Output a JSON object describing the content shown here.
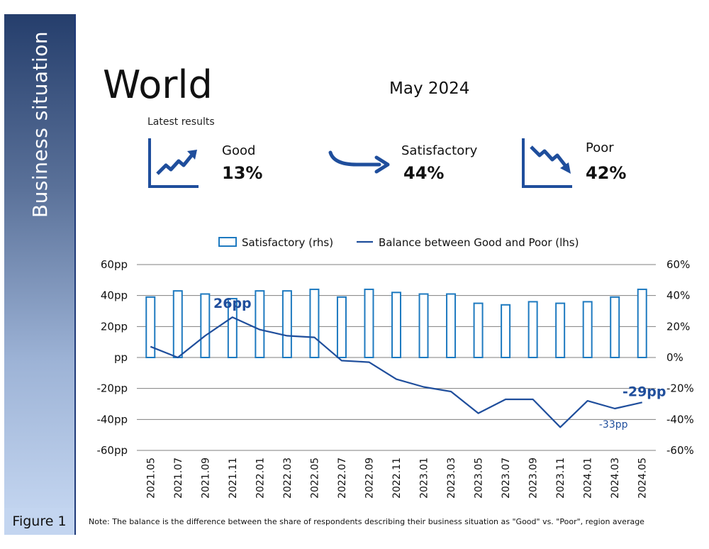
{
  "sidebar": {
    "title": "Business situation",
    "figure_label": "Figure 1"
  },
  "header": {
    "region": "World",
    "period": "May 2024",
    "latest_label": "Latest results"
  },
  "kpis": [
    {
      "label": "Good",
      "value": "13%",
      "icon": "trend-up-chart-icon"
    },
    {
      "label": "Satisfactory",
      "value": "44%",
      "icon": "curved-arrow-right-icon"
    },
    {
      "label": "Poor",
      "value": "42%",
      "icon": "trend-down-chart-icon"
    }
  ],
  "colors": {
    "accent": "#1f4e9c",
    "bar_stroke": "#1e7ac0",
    "grid": "#7f7f7f",
    "sidebar_top": "#253e6c",
    "sidebar_bottom": "#c2d4ef"
  },
  "chart_data": {
    "type": "bar",
    "categories": [
      "2021.05",
      "2021.07",
      "2021.09",
      "2021.11",
      "2022.01",
      "2022.03",
      "2022.05",
      "2022.07",
      "2022.09",
      "2022.11",
      "2023.01",
      "2023.03",
      "2023.05",
      "2023.07",
      "2023.09",
      "2023.11",
      "2024.01",
      "2024.03",
      "2024.05"
    ],
    "series": [
      {
        "name": "Satisfactory (rhs)",
        "type": "bar",
        "axis": "right",
        "values": [
          39,
          43,
          41,
          38,
          43,
          43,
          44,
          39,
          44,
          42,
          41,
          41,
          35,
          34,
          36,
          35,
          36,
          39,
          44
        ]
      },
      {
        "name": "Balance between Good and Poor (lhs)",
        "type": "line",
        "axis": "left",
        "values": [
          7,
          0,
          14,
          26,
          18,
          14,
          13,
          -2,
          -3,
          -14,
          -19,
          -22,
          -36,
          -27,
          -27,
          -45,
          -28,
          -33,
          -29
        ]
      }
    ],
    "left_axis": {
      "ylim": [
        -60,
        60
      ],
      "ticks": [
        "60pp",
        "40pp",
        "20pp",
        "pp",
        "-20pp",
        "-40pp",
        "-60pp"
      ]
    },
    "right_axis": {
      "ylim": [
        -60,
        60
      ],
      "ticks": [
        "60%",
        "40%",
        "20%",
        "0%",
        "-20%",
        "-40%",
        "-60%"
      ]
    },
    "annotations": [
      {
        "text": "26pp",
        "category": "2021.11",
        "value": 26
      },
      {
        "text": "-29pp",
        "category": "2024.05",
        "value": -29
      },
      {
        "text": "-33pp",
        "category": "2024.03",
        "value": -33
      }
    ],
    "legend": {
      "placement": "top",
      "entries": [
        "Satisfactory (rhs)",
        "Balance between Good and Poor (lhs)"
      ]
    },
    "grid": true
  },
  "note": "Note: The balance is the difference between the share of respondents describing their business situation as \"Good\" vs. \"Poor\", region average"
}
